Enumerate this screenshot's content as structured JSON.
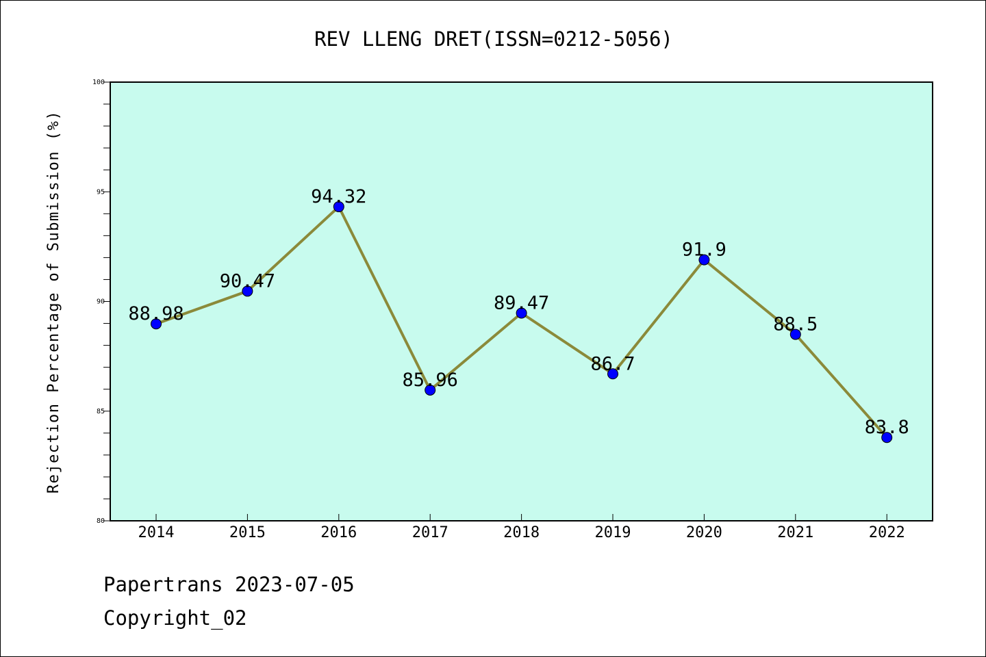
{
  "chart_data": {
    "type": "line",
    "title": "REV LLENG DRET(ISSN=0212-5056)",
    "xlabel": "",
    "ylabel": "Rejection Percentage of Submission (%)",
    "categories": [
      "2014",
      "2015",
      "2016",
      "2017",
      "2018",
      "2019",
      "2020",
      "2021",
      "2022"
    ],
    "values": [
      88.98,
      90.47,
      94.32,
      85.96,
      89.47,
      86.7,
      91.9,
      88.5,
      83.8
    ],
    "data_labels": [
      "88.98",
      "90.47",
      "94.32",
      "85.96",
      "89.47",
      "86.7",
      "91.9",
      "88.5",
      "83.8"
    ],
    "ylim": [
      80,
      100
    ],
    "yticks": [
      80,
      85,
      90,
      95,
      100
    ],
    "grid": false,
    "legend": "none",
    "colors": {
      "plot_background": "#c8fbee",
      "line": "#8b8a3a",
      "marker": "#0000ff"
    }
  },
  "footer": {
    "line1": "Papertrans 2023-07-05",
    "line2": "Copyright_02"
  }
}
